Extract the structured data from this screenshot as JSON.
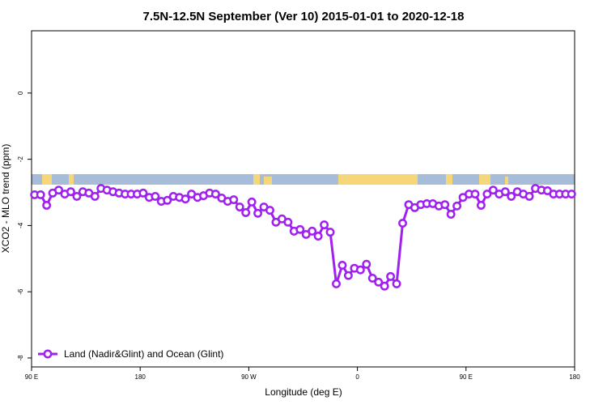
{
  "chart_data": {
    "type": "line",
    "title": "7.5N-12.5N September (Ver 10)   2015-01-01 to 2020-12-18",
    "x_label": "Longitude (deg E)",
    "y_label": "XCO2 - MLO trend (ppm)",
    "x": [
      92.5,
      97.5,
      102.5,
      107.5,
      112.5,
      117.5,
      122.5,
      127.5,
      132.5,
      137.5,
      142.5,
      147.5,
      152.5,
      157.5,
      162.5,
      167.5,
      172.5,
      177.5,
      182.5,
      187.5,
      192.5,
      197.5,
      202.5,
      207.5,
      212.5,
      217.5,
      222.5,
      227.5,
      232.5,
      237.5,
      242.5,
      247.5,
      252.5,
      257.5,
      262.5,
      267.5,
      272.5,
      277.5,
      282.5,
      287.5,
      292.5,
      297.5,
      302.5,
      307.5,
      312.5,
      317.5,
      322.5,
      327.5,
      332.5,
      337.5,
      342.5,
      347.5,
      352.5,
      357.5,
      362.5,
      367.5,
      372.5,
      377.5,
      382.5,
      387.5,
      392.5,
      397.5,
      402.5,
      407.5,
      412.5,
      417.5,
      422.5,
      427.5,
      432.5,
      437.5,
      442.5,
      447.5,
      452.5,
      457.5,
      462.5,
      467.5,
      472.5,
      477.5,
      482.5,
      487.5,
      492.5,
      497.5,
      502.5,
      507.5,
      512.5,
      517.5,
      522.5,
      527.5,
      532.5,
      537.5
    ],
    "series": [
      {
        "name": "Land (Nadir&Glint) and Ocean (Glint)",
        "color": "#a020f0",
        "values": [
          -3.07,
          -3.07,
          -3.39,
          -3.02,
          -2.93,
          -3.05,
          -2.98,
          -3.12,
          -2.98,
          -3.02,
          -3.12,
          -2.88,
          -2.93,
          -2.98,
          -3.02,
          -3.05,
          -3.05,
          -3.05,
          -3.02,
          -3.15,
          -3.12,
          -3.27,
          -3.24,
          -3.12,
          -3.15,
          -3.2,
          -3.05,
          -3.15,
          -3.1,
          -3.02,
          -3.05,
          -3.17,
          -3.27,
          -3.22,
          -3.44,
          -3.61,
          -3.29,
          -3.63,
          -3.44,
          -3.54,
          -3.9,
          -3.8,
          -3.9,
          -4.17,
          -4.12,
          -4.27,
          -4.17,
          -4.32,
          -3.98,
          -4.2,
          -5.76,
          -5.2,
          -5.51,
          -5.29,
          -5.34,
          -5.17,
          -5.59,
          -5.71,
          -5.83,
          -5.54,
          -5.76,
          -3.93,
          -3.37,
          -3.46,
          -3.37,
          -3.34,
          -3.34,
          -3.41,
          -3.37,
          -3.66,
          -3.41,
          -3.15,
          -3.05,
          -3.05,
          -3.39,
          -3.05,
          -2.93,
          -3.05,
          -2.98,
          -3.12,
          -2.98,
          -3.05,
          -3.12,
          -2.88,
          -2.93,
          -2.95,
          -3.05,
          -3.05,
          -3.05,
          -3.05
        ]
      }
    ],
    "xlim": [
      90,
      540
    ],
    "xticks": [
      {
        "value": 90,
        "label": "90 E"
      },
      180,
      {
        "value": 270,
        "label": "90 W"
      },
      {
        "value": 360,
        "label": "0"
      },
      {
        "value": 450,
        "label": "90 E"
      },
      {
        "value": 540,
        "label": "180"
      }
    ],
    "ylim": [
      -8.27,
      1.88
    ],
    "yticks": [
      -8,
      -6,
      -4,
      -2,
      0
    ],
    "legend": "bottom-left"
  }
}
